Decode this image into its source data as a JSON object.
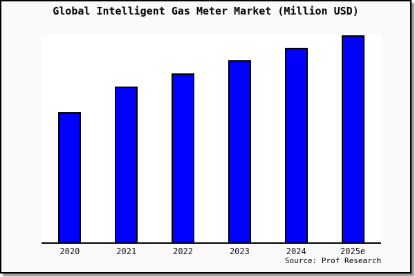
{
  "figure": {
    "title": "Global Intelligent Gas Meter Market (Million USD)",
    "source": "Source: Prof Research",
    "background": "#fafafa",
    "plot_background": "#ffffff",
    "border_color": "#000000",
    "shadow_color": "#9a9a9a"
  },
  "chart_data": {
    "type": "bar",
    "title": "Global Intelligent Gas Meter Market (Million USD)",
    "categories": [
      "2020",
      "2021",
      "2022",
      "2023",
      "2024",
      "2025e"
    ],
    "values": [
      188,
      225,
      244,
      263,
      281,
      299
    ],
    "xlabel": "",
    "ylabel": "",
    "ylim": [
      0,
      300
    ],
    "y_tick_labels": [],
    "grid": false,
    "legend": null,
    "bar_color": "#0000ff",
    "bar_edge_color": "#000000",
    "axis_color": "#000000",
    "annotations": [
      "Source: Prof Research"
    ]
  }
}
